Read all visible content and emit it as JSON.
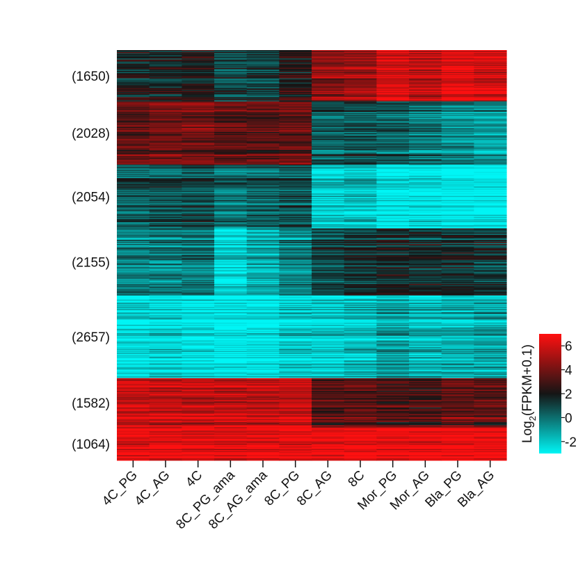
{
  "chart_data": {
    "type": "heatmap",
    "columns": [
      "4C_PG",
      "4C_AG",
      "4C",
      "8C_PG_ama",
      "8C_AG_ama",
      "8C_PG",
      "8C_AG",
      "8C",
      "Mor_PG",
      "Mor_AG",
      "Bla_PG",
      "Bla_AG"
    ],
    "clusters": [
      {
        "label": "(1650)",
        "genes": 1650,
        "mean_values": [
          1.8,
          1.6,
          2.0,
          0.8,
          1.0,
          2.2,
          4.5,
          4.8,
          6.0,
          5.5,
          6.5,
          6.0
        ]
      },
      {
        "label": "(2028)",
        "genes": 2028,
        "mean_values": [
          3.8,
          4.0,
          4.2,
          3.6,
          3.7,
          3.8,
          0.5,
          0.8,
          0.5,
          0.0,
          -0.5,
          -0.8
        ]
      },
      {
        "label": "(2054)",
        "genes": 2054,
        "mean_values": [
          0.5,
          0.6,
          0.8,
          0.0,
          0.3,
          0.6,
          -2.0,
          -1.8,
          -2.8,
          -2.6,
          -3.0,
          -3.0
        ]
      },
      {
        "label": "(2155)",
        "genes": 2155,
        "mean_values": [
          -0.5,
          -0.3,
          -0.2,
          -2.5,
          -1.5,
          -0.5,
          1.0,
          1.2,
          1.8,
          1.5,
          1.5,
          1.2
        ]
      },
      {
        "label": "(2657)",
        "genes": 2657,
        "mean_values": [
          -2.5,
          -2.3,
          -2.6,
          -3.0,
          -2.8,
          -2.0,
          -2.2,
          -1.8,
          -1.2,
          -1.6,
          -1.4,
          -1.2
        ]
      },
      {
        "label": "(1582)",
        "genes": 1582,
        "mean_values": [
          5.8,
          5.9,
          5.7,
          5.8,
          5.8,
          5.9,
          3.5,
          3.8,
          3.2,
          3.0,
          3.8,
          3.5
        ]
      },
      {
        "label": "(1064)",
        "genes": 1064,
        "mean_values": [
          6.6,
          6.7,
          6.6,
          6.5,
          6.6,
          6.6,
          6.8,
          6.8,
          7.0,
          6.9,
          7.0,
          6.8
        ]
      }
    ],
    "colorbar": {
      "label": "Log2(FPKM+0.1)",
      "label_main": "Log",
      "label_sub": "2",
      "label_rest": "(FPKM+0.1)",
      "range": [
        -3,
        7
      ],
      "ticks": [
        "-2",
        "0",
        "2",
        "4",
        "6"
      ],
      "colors": {
        "low": "#00f5f5",
        "mid": "#151515",
        "high": "#ff1010"
      }
    }
  }
}
